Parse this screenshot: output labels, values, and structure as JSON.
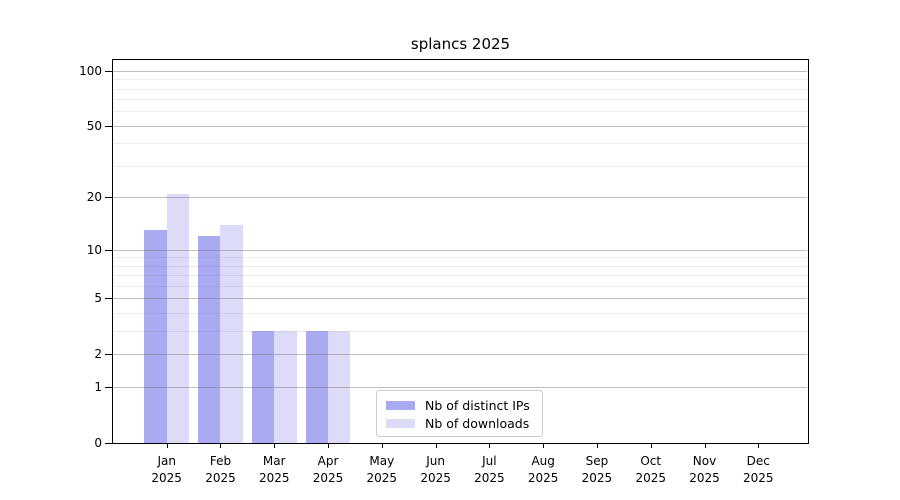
{
  "chart_data": {
    "type": "bar",
    "title": "splancs 2025",
    "categories": [
      "Jan",
      "Feb",
      "Mar",
      "Apr",
      "May",
      "Jun",
      "Jul",
      "Aug",
      "Sep",
      "Oct",
      "Nov",
      "Dec"
    ],
    "category_year": "2025",
    "series": [
      {
        "name": "Nb of distinct IPs",
        "color": "#aaaaf2",
        "values": [
          13,
          12,
          3,
          3,
          0,
          0,
          0,
          0,
          0,
          0,
          0,
          0
        ]
      },
      {
        "name": "Nb of downloads",
        "color": "#dcdcf8",
        "values": [
          21,
          14,
          3,
          3,
          0,
          0,
          0,
          0,
          0,
          0,
          0,
          0
        ]
      }
    ],
    "xlabel": "",
    "ylabel": "",
    "yscale": "log1p",
    "ylim": [
      0,
      115
    ],
    "yticks_major": [
      0,
      1,
      2,
      5,
      10,
      20,
      50,
      100
    ],
    "yticks_minor": [
      3,
      4,
      6,
      7,
      8,
      9,
      30,
      40,
      60,
      70,
      80,
      90
    ],
    "grid": true,
    "legend_position": "lower center"
  }
}
